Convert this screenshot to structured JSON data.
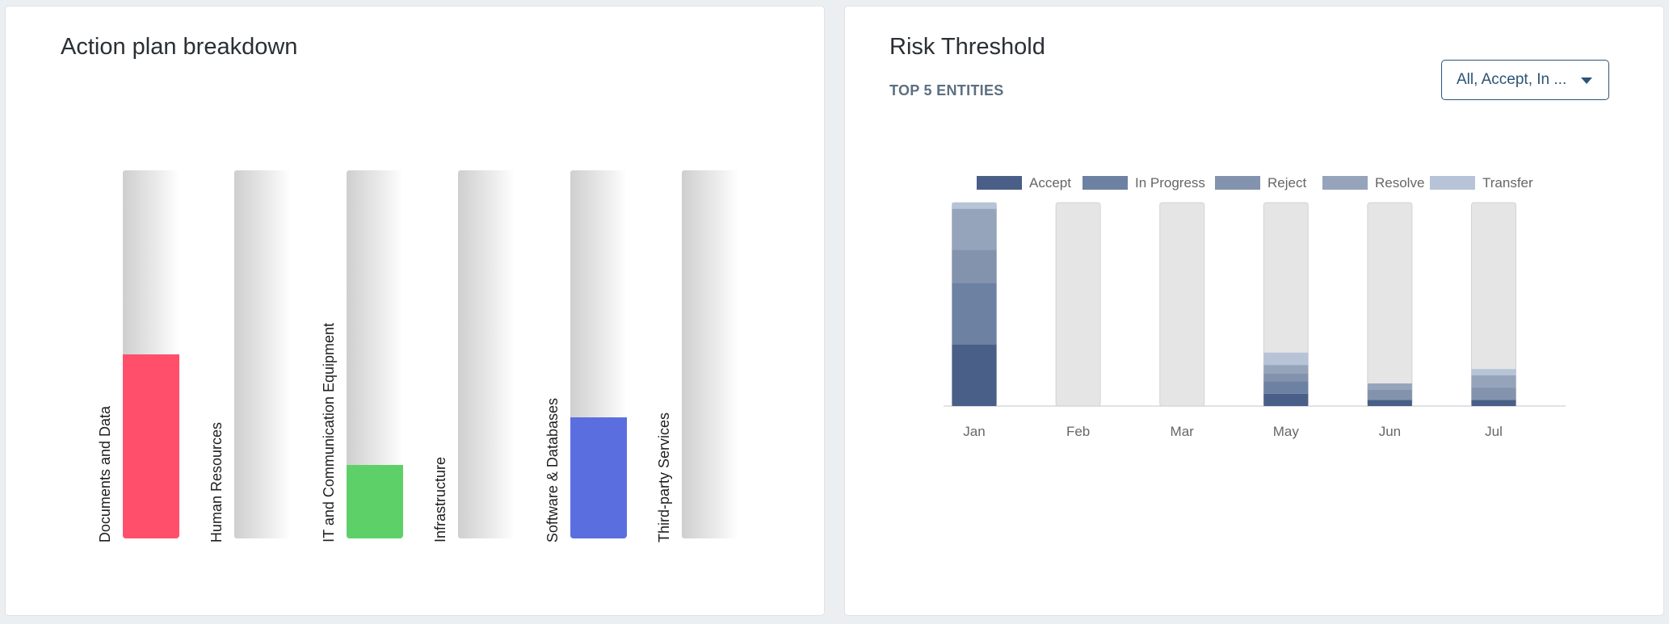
{
  "action_plan": {
    "title": "Action plan breakdown",
    "chart_data": {
      "type": "bar",
      "categories": [
        "Documents and Data",
        "Human Resources",
        "IT and Communication Equipment",
        "Infrastructure",
        "Software & Databases",
        "Third-party Services"
      ],
      "values": [
        0.5,
        0,
        0.2,
        0,
        0.33,
        0
      ],
      "value_unit": "fraction of full bar",
      "colors": [
        "#ff4f6b",
        "#d0d0d0",
        "#5ed068",
        "#d0d0d0",
        "#5b6ee0",
        "#d0d0d0"
      ],
      "title": "Action plan breakdown",
      "xlabel": "",
      "ylabel": "",
      "grid": false,
      "legend": "none"
    }
  },
  "risk_threshold": {
    "title": "Risk Threshold",
    "subtitle": "TOP 5 ENTITIES",
    "filter": {
      "label": "All, Accept, In ..."
    },
    "chart_data": {
      "type": "bar",
      "stacked": true,
      "categories": [
        "Jan",
        "Feb",
        "Mar",
        "May",
        "Jun",
        "Jul"
      ],
      "series": [
        {
          "name": "Accept",
          "color": "#495f87",
          "values": [
            15,
            0,
            0,
            3,
            1.5,
            1.5
          ]
        },
        {
          "name": "In Progress",
          "color": "#6d81a3",
          "values": [
            15,
            0,
            0,
            3,
            0,
            0
          ]
        },
        {
          "name": "Reject",
          "color": "#8393ad",
          "values": [
            8,
            0,
            0,
            2,
            2.5,
            3
          ]
        },
        {
          "name": "Resolve",
          "color": "#96a4bb",
          "values": [
            10,
            0,
            0,
            2,
            1.5,
            3
          ]
        },
        {
          "name": "Transfer",
          "color": "#b7c3d6",
          "values": [
            1.5,
            0,
            0,
            3,
            0,
            1.5
          ]
        }
      ],
      "ylim": [
        0,
        49.5
      ],
      "xlabel": "",
      "ylabel": "",
      "grid": false,
      "legend": "top",
      "background_bar_color": "#e5e5e5"
    }
  }
}
